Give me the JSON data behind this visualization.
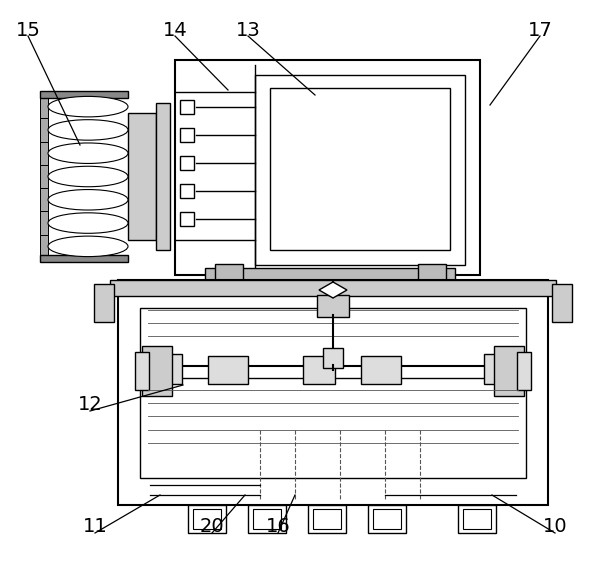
{
  "bg_color": "#ffffff",
  "line_color": "#000000",
  "labels_info": [
    [
      "15",
      28,
      30,
      80,
      145
    ],
    [
      "14",
      175,
      30,
      228,
      90
    ],
    [
      "13",
      248,
      30,
      315,
      95
    ],
    [
      "17",
      540,
      30,
      490,
      105
    ],
    [
      "12",
      90,
      405,
      183,
      385
    ],
    [
      "11",
      95,
      527,
      160,
      495
    ],
    [
      "20",
      212,
      527,
      245,
      495
    ],
    [
      "16",
      278,
      527,
      295,
      495
    ],
    [
      "10",
      555,
      527,
      492,
      495
    ]
  ]
}
